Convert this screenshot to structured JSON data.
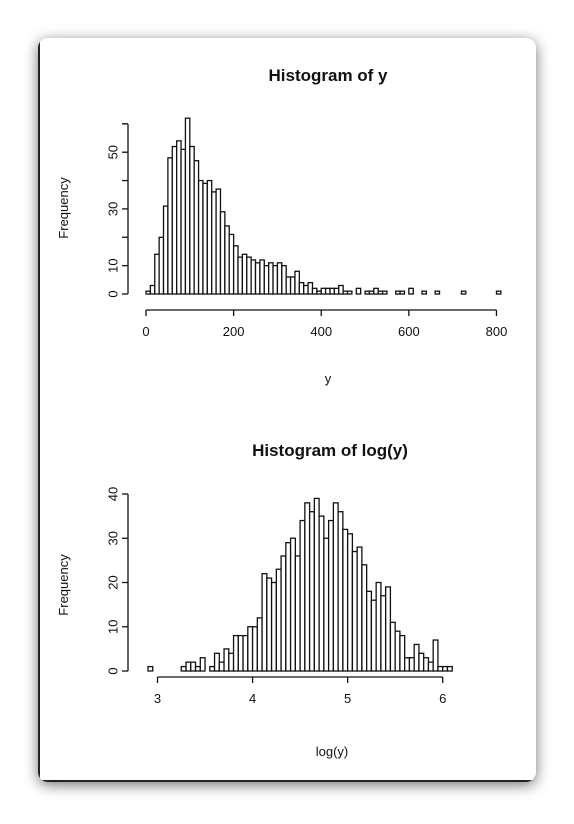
{
  "chart_data": [
    {
      "type": "bar",
      "title": "Histogram of y",
      "xlabel": "y",
      "ylabel": "Frequency",
      "xlim": [
        0,
        840
      ],
      "ylim": [
        0,
        61
      ],
      "xticks": [
        0,
        200,
        400,
        600,
        800
      ],
      "yticks": [
        0,
        10,
        30,
        50
      ],
      "bin_width": 10,
      "bin_start": 0,
      "values": [
        1,
        3,
        14,
        20,
        31,
        48,
        52,
        54,
        51,
        62,
        52,
        47,
        40,
        39,
        40,
        36,
        37,
        29,
        24,
        21,
        17,
        13,
        14,
        13,
        12,
        11,
        12,
        10,
        11,
        10,
        11,
        10,
        6,
        6,
        8,
        4,
        3,
        4,
        2,
        1,
        2,
        2,
        2,
        2,
        3,
        1,
        1,
        0,
        2,
        0,
        1,
        1,
        2,
        1,
        1,
        0,
        0,
        1,
        1,
        0,
        2,
        0,
        0,
        1,
        0,
        0,
        1,
        0,
        0,
        0,
        0,
        0,
        1,
        0,
        0,
        0,
        0,
        0,
        0,
        0,
        1,
        0,
        0,
        0
      ]
    },
    {
      "type": "bar",
      "title": "Histogram of log(y)",
      "xlabel": "log(y)",
      "ylabel": "Frequency",
      "xlim": [
        2.9,
        6.75
      ],
      "ylim": [
        0,
        40
      ],
      "xticks": [
        3,
        4,
        5,
        6
      ],
      "yticks": [
        0,
        10,
        20,
        30,
        40
      ],
      "bin_width": 0.05,
      "bin_start": 2.9,
      "values": [
        1,
        0,
        0,
        0,
        0,
        0,
        0,
        1,
        2,
        2,
        1,
        3,
        0,
        1,
        4,
        2,
        5,
        4,
        8,
        8,
        8,
        10,
        10,
        12,
        22,
        21,
        20,
        23,
        26,
        29,
        30,
        26,
        34,
        38,
        36,
        39,
        35,
        30,
        34,
        38,
        36,
        32,
        31,
        27,
        28,
        24,
        18,
        16,
        20,
        17,
        19,
        11,
        9,
        8,
        3,
        3,
        6,
        4,
        3,
        2,
        7,
        1,
        1,
        1
      ]
    }
  ]
}
